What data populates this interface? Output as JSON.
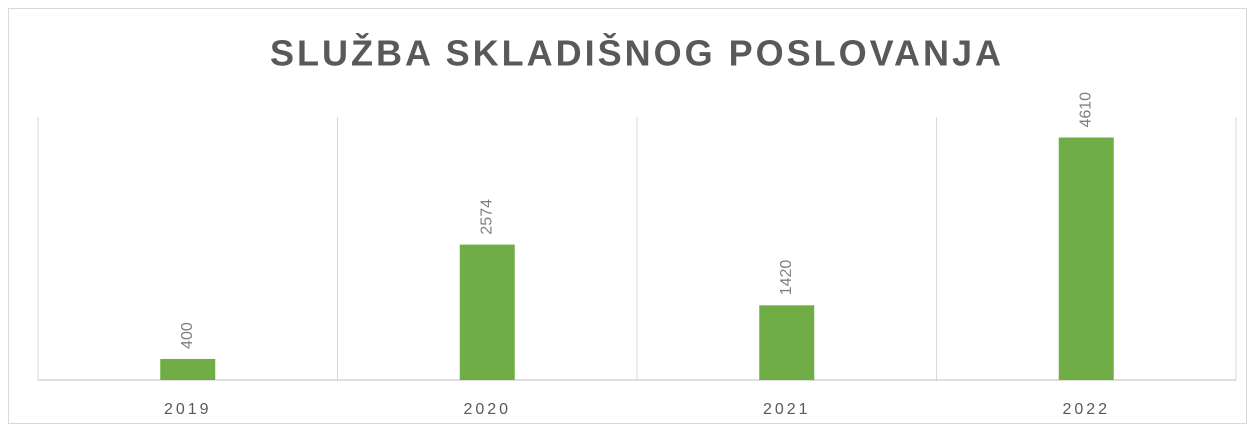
{
  "chart_data": {
    "type": "bar",
    "title": "SLUŽBA SKLADIŠNOG POSLOVANJA",
    "categories": [
      "2019",
      "2020",
      "2021",
      "2022"
    ],
    "values": [
      400,
      2574,
      1420,
      4610
    ],
    "color": "#70ad47",
    "ylim": [
      0,
      5000
    ]
  }
}
